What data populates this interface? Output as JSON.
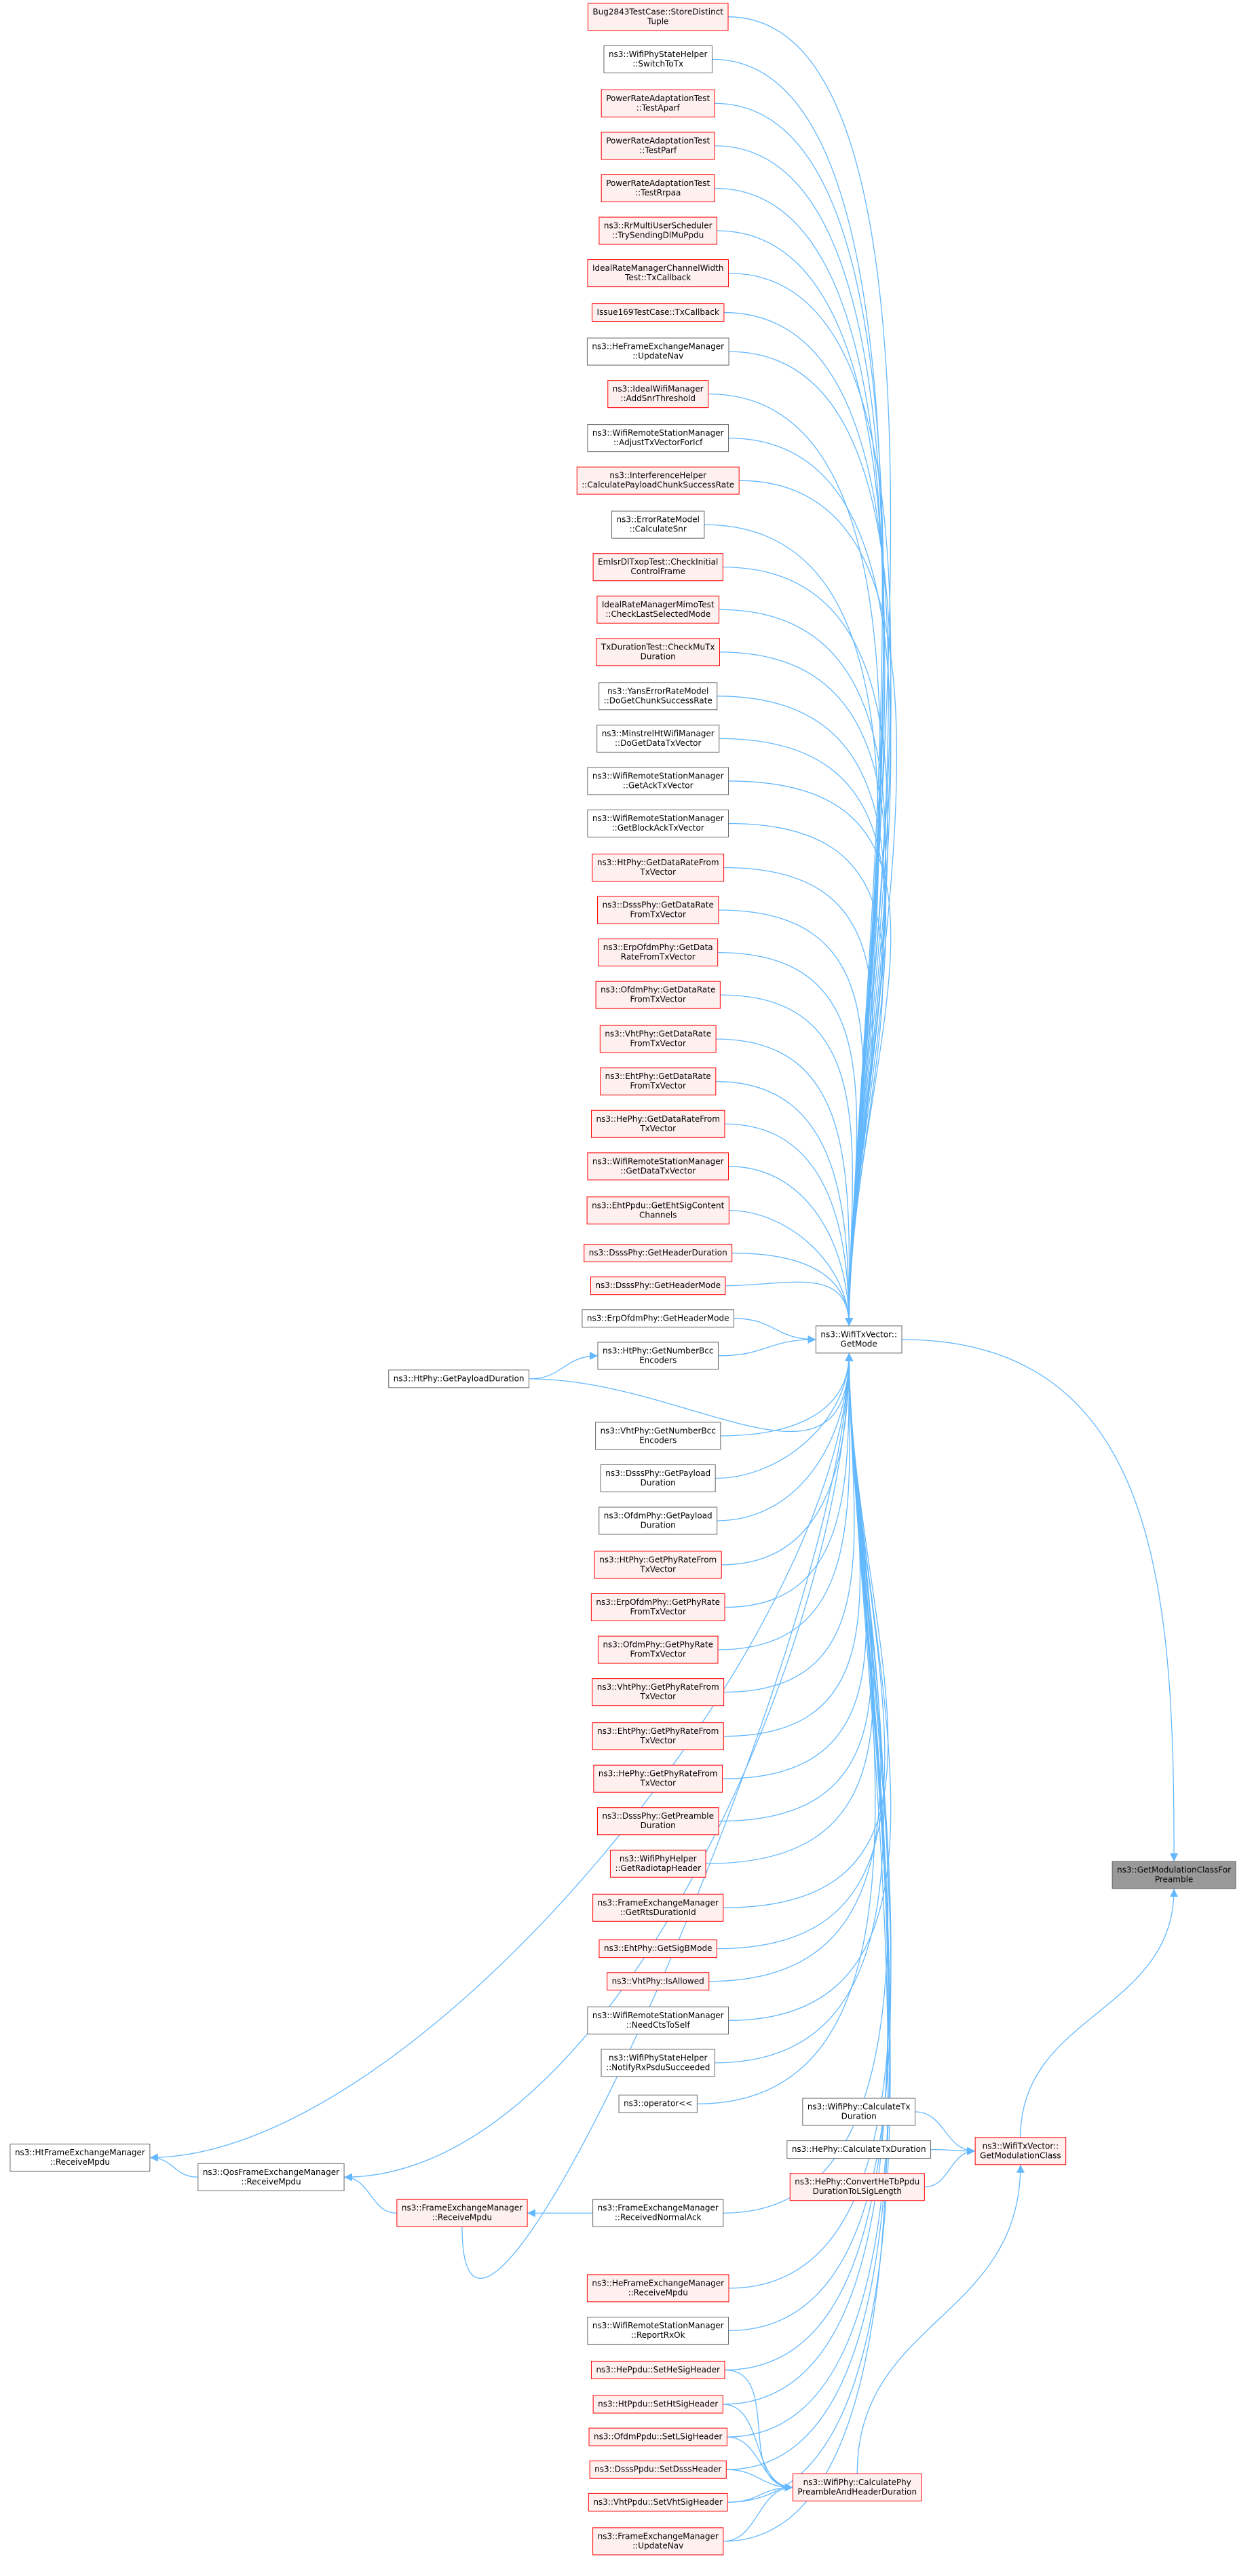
{
  "nodes": [
    {
      "label": [
        "Bug2843TestCase::StoreDistinct",
        "Tuple"
      ]
    },
    {
      "label": [
        "ns3::WifiPhyStateHelper",
        "::SwitchToTx"
      ]
    },
    {
      "label": [
        "PowerRateAdaptationTest",
        "::TestAparf"
      ]
    },
    {
      "label": [
        "PowerRateAdaptationTest",
        "::TestParf"
      ]
    },
    {
      "label": [
        "PowerRateAdaptationTest",
        "::TestRrpaa"
      ]
    },
    {
      "label": [
        "ns3::RrMultiUserScheduler",
        "::TrySendingDlMuPpdu"
      ]
    },
    {
      "label": [
        "IdealRateManagerChannelWidth",
        "Test::TxCallback"
      ]
    },
    {
      "label": [
        "Issue169TestCase::TxCallback"
      ]
    },
    {
      "label": [
        "ns3::HeFrameExchangeManager",
        "::UpdateNav"
      ]
    },
    {
      "label": [
        "ns3::IdealWifiManager",
        "::AddSnrThreshold"
      ]
    },
    {
      "label": [
        "ns3::WifiRemoteStationManager",
        "::AdjustTxVectorForIcf"
      ]
    },
    {
      "label": [
        "ns3::InterferenceHelper",
        "::CalculatePayloadChunkSuccessRate"
      ]
    },
    {
      "label": [
        "ns3::ErrorRateModel",
        "::CalculateSnr"
      ]
    },
    {
      "label": [
        "EmlsrDlTxopTest::CheckInitial",
        "ControlFrame"
      ]
    },
    {
      "label": [
        "IdealRateManagerMimoTest",
        "::CheckLastSelectedMode"
      ]
    },
    {
      "label": [
        "TxDurationTest::CheckMuTx",
        "Duration"
      ]
    },
    {
      "label": [
        "ns3::YansErrorRateModel",
        "::DoGetChunkSuccessRate"
      ]
    },
    {
      "label": [
        "ns3::MinstrelHtWifiManager",
        "::DoGetDataTxVector"
      ]
    },
    {
      "label": [
        "ns3::WifiRemoteStationManager",
        "::GetAckTxVector"
      ]
    },
    {
      "label": [
        "ns3::WifiRemoteStationManager",
        "::GetBlockAckTxVector"
      ]
    },
    {
      "label": [
        "ns3::HtPhy::GetDataRateFrom",
        "TxVector"
      ]
    },
    {
      "label": [
        "ns3::DsssPhy::GetDataRate",
        "FromTxVector"
      ]
    },
    {
      "label": [
        "ns3::ErpOfdmPhy::GetData",
        "RateFromTxVector"
      ]
    },
    {
      "label": [
        "ns3::OfdmPhy::GetDataRate",
        "FromTxVector"
      ]
    },
    {
      "label": [
        "ns3::VhtPhy::GetDataRate",
        "FromTxVector"
      ]
    },
    {
      "label": [
        "ns3::EhtPhy::GetDataRate",
        "FromTxVector"
      ]
    },
    {
      "label": [
        "ns3::HePhy::GetDataRateFrom",
        "TxVector"
      ]
    },
    {
      "label": [
        "ns3::WifiRemoteStationManager",
        "::GetDataTxVector"
      ]
    },
    {
      "label": [
        "ns3::EhtPpdu::GetEhtSigContent",
        "Channels"
      ]
    },
    {
      "label": [
        "ns3::DsssPhy::GetHeaderDuration"
      ]
    },
    {
      "label": [
        "ns3::DsssPhy::GetHeaderMode"
      ]
    },
    {
      "label": [
        "ns3::ErpOfdmPhy::GetHeaderMode"
      ]
    },
    {
      "label": [
        "ns3::HtPhy::GetNumberBcc",
        "Encoders"
      ]
    },
    {
      "label": [
        "ns3::HtPhy::GetPayloadDuration"
      ]
    },
    {
      "label": [
        "ns3::WifiTxVector::",
        "GetMode"
      ]
    },
    {
      "label": [
        "ns3::VhtPhy::GetNumberBcc",
        "Encoders"
      ]
    },
    {
      "label": [
        "ns3::DsssPhy::GetPayload",
        "Duration"
      ]
    },
    {
      "label": [
        "ns3::OfdmPhy::GetPayload",
        "Duration"
      ]
    },
    {
      "label": [
        "ns3::HtPhy::GetPhyRateFrom",
        "TxVector"
      ]
    },
    {
      "label": [
        "ns3::ErpOfdmPhy::GetPhyRate",
        "FromTxVector"
      ]
    },
    {
      "label": [
        "ns3::OfdmPhy::GetPhyRate",
        "FromTxVector"
      ]
    },
    {
      "label": [
        "ns3::VhtPhy::GetPhyRateFrom",
        "TxVector"
      ]
    },
    {
      "label": [
        "ns3::EhtPhy::GetPhyRateFrom",
        "TxVector"
      ]
    },
    {
      "label": [
        "ns3::HePhy::GetPhyRateFrom",
        "TxVector"
      ]
    },
    {
      "label": [
        "ns3::DsssPhy::GetPreamble",
        "Duration"
      ]
    },
    {
      "label": [
        "ns3::WifiPhyHelper",
        "::GetRadiotapHeader"
      ]
    },
    {
      "label": [
        "ns3::FrameExchangeManager",
        "::GetRtsDurationId"
      ]
    },
    {
      "label": [
        "ns3::EhtPhy::GetSigBMode"
      ]
    },
    {
      "label": [
        "ns3::VhtPhy::IsAllowed"
      ]
    },
    {
      "label": [
        "ns3::WifiRemoteStationManager",
        "::NeedCtsToSelf"
      ]
    },
    {
      "label": [
        "ns3::WifiPhyStateHelper",
        "::NotifyRxPsduSucceeded"
      ]
    },
    {
      "label": [
        "ns3::operator<<"
      ]
    },
    {
      "label": [
        "ns3::HtFrameExchangeManager",
        "::ReceiveMpdu"
      ]
    },
    {
      "label": [
        "ns3::QosFrameExchangeManager",
        "::ReceiveMpdu"
      ]
    },
    {
      "label": [
        "ns3::FrameExchangeManager",
        "::ReceiveMpdu"
      ]
    },
    {
      "label": [
        "ns3::FrameExchangeManager",
        "::ReceivedNormalAck"
      ]
    },
    {
      "label": [
        "ns3::HeFrameExchangeManager",
        "::ReceiveMpdu"
      ]
    },
    {
      "label": [
        "ns3::WifiRemoteStationManager",
        "::ReportRxOk"
      ]
    },
    {
      "label": [
        "ns3::HePpdu::SetHeSigHeader"
      ]
    },
    {
      "label": [
        "ns3::HtPpdu::SetHtSigHeader"
      ]
    },
    {
      "label": [
        "ns3::OfdmPpdu::SetLSigHeader"
      ]
    },
    {
      "label": [
        "ns3::DsssPpdu::SetDsssHeader"
      ]
    },
    {
      "label": [
        "ns3::VhtPpdu::SetVhtSigHeader"
      ]
    },
    {
      "label": [
        "ns3::FrameExchangeManager",
        "::UpdateNav"
      ]
    },
    {
      "label": [
        "ns3::WifiPhy::CalculateTx",
        "Duration"
      ]
    },
    {
      "label": [
        "ns3::HePhy::CalculateTxDuration"
      ]
    },
    {
      "label": [
        "ns3::HePhy::ConvertHeTbPpdu",
        "DurationToLSigLength"
      ]
    },
    {
      "label": [
        "ns3::WifiPhy::CalculatePhy",
        "PreambleAndHeaderDuration"
      ]
    },
    {
      "label": [
        "ns3::WifiTxVector::",
        "GetModulationClass"
      ]
    },
    {
      "label": [
        "ns3::GetModulationClassFor",
        "Preamble"
      ]
    }
  ]
}
